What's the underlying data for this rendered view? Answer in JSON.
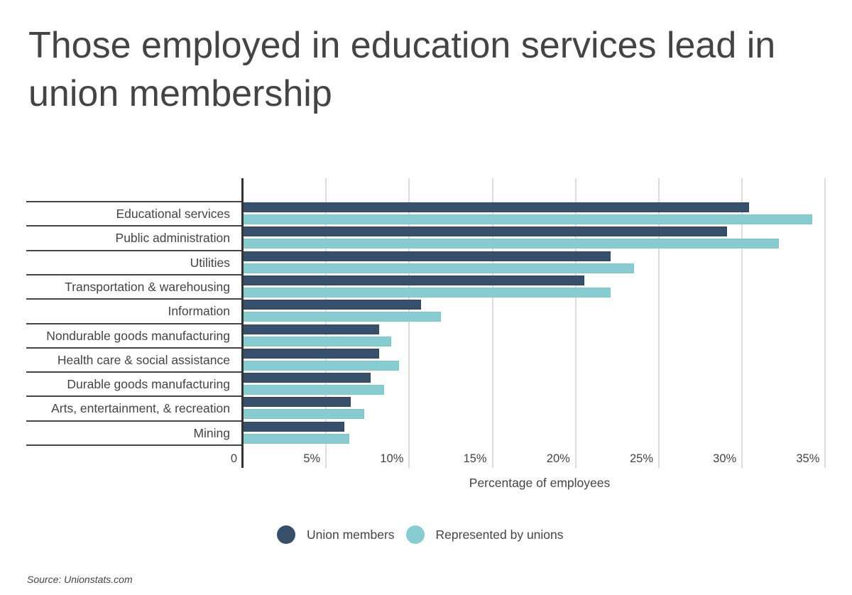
{
  "title": "Those employed in education services lead in union membership",
  "colors": {
    "union_members": "#364f6b",
    "represented": "#87ccd0"
  },
  "legend": [
    {
      "label": "Union members",
      "color": "#364f6b"
    },
    {
      "label": "Represented by unions",
      "color": "#87ccd0"
    }
  ],
  "x_ticks": [
    "0",
    "5%",
    "10%",
    "15%",
    "20%",
    "25%",
    "30%",
    "35%"
  ],
  "xlabel": "Percentage of employees",
  "source": "Source:  Unionstats.com",
  "chart_data": {
    "type": "bar",
    "orientation": "horizontal",
    "title": "Those employed in education services lead in union membership",
    "xlabel": "Percentage of employees",
    "ylabel": "",
    "xlim": [
      0,
      35
    ],
    "x_ticks": [
      "0",
      "5%",
      "10%",
      "15%",
      "20%",
      "25%",
      "30%",
      "35%"
    ],
    "grid": true,
    "legend_position": "bottom",
    "categories": [
      "Educational services",
      "Public administration",
      "Utilities",
      "Transportation & warehousing",
      "Information",
      "Nondurable goods manufacturing",
      "Health care & social assistance",
      "Durable goods manufacturing",
      "Arts, entertainment, & recreation",
      "Mining"
    ],
    "series": [
      {
        "name": "Union members",
        "color": "#364f6b",
        "values": [
          30.4,
          29.1,
          22.1,
          20.5,
          10.7,
          8.2,
          8.2,
          7.7,
          6.5,
          6.1
        ]
      },
      {
        "name": "Represented by unions",
        "color": "#87ccd0",
        "values": [
          34.2,
          32.2,
          23.5,
          22.1,
          11.9,
          8.9,
          9.4,
          8.5,
          7.3,
          6.4
        ]
      }
    ],
    "source": "Source:  Unionstats.com"
  }
}
